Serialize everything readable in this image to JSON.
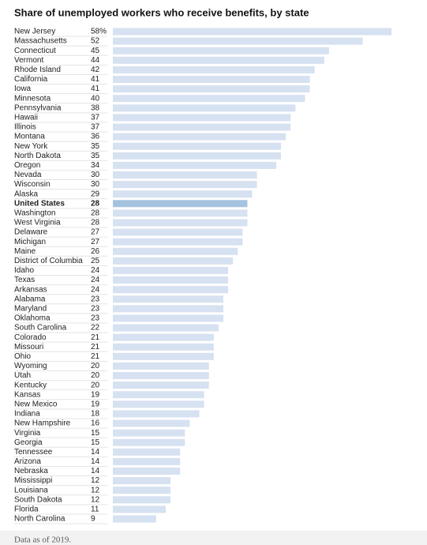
{
  "chart_data": {
    "type": "hbar",
    "title": "Share of unemployed workers who receive benefits, by state",
    "categories": [
      "New Jersey",
      "Massachusetts",
      "Connecticut",
      "Vermont",
      "Rhode Island",
      "California",
      "Iowa",
      "Minnesota",
      "Pennsylvania",
      "Hawaii",
      "Illinois",
      "Montana",
      "New York",
      "North Dakota",
      "Oregon",
      "Nevada",
      "Wisconsin",
      "Alaska",
      "United States",
      "Washington",
      "West Virginia",
      "Delaware",
      "Michigan",
      "Maine",
      "District of Columbia",
      "Idaho",
      "Texas",
      "Arkansas",
      "Alabama",
      "Maryland",
      "Oklahoma",
      "South Carolina",
      "Colorado",
      "Missouri",
      "Ohio",
      "Wyoming",
      "Utah",
      "Kentucky",
      "Kansas",
      "New Mexico",
      "Indiana",
      "New Hampshire",
      "Virginia",
      "Georgia",
      "Tennessee",
      "Arizona",
      "Nebraska",
      "Mississippi",
      "Louisiana",
      "South Dakota",
      "Florida",
      "North Carolina"
    ],
    "values": [
      58,
      52,
      45,
      44,
      42,
      41,
      41,
      40,
      38,
      37,
      37,
      36,
      35,
      35,
      34,
      30,
      30,
      29,
      28,
      28,
      28,
      27,
      27,
      26,
      25,
      24,
      24,
      24,
      23,
      23,
      23,
      22,
      21,
      21,
      21,
      20,
      20,
      20,
      19,
      19,
      18,
      16,
      15,
      15,
      14,
      14,
      14,
      12,
      12,
      12,
      11,
      9
    ],
    "value_labels": [
      "58%",
      "52",
      "45",
      "44",
      "42",
      "41",
      "41",
      "40",
      "38",
      "37",
      "37",
      "36",
      "35",
      "35",
      "34",
      "30",
      "30",
      "29",
      "28",
      "28",
      "28",
      "27",
      "27",
      "26",
      "25",
      "24",
      "24",
      "24",
      "23",
      "23",
      "23",
      "22",
      "21",
      "21",
      "21",
      "20",
      "20",
      "20",
      "19",
      "19",
      "18",
      "16",
      "15",
      "15",
      "14",
      "14",
      "14",
      "12",
      "12",
      "12",
      "11",
      "9"
    ],
    "color": "#d6e1f1",
    "highlight": "United States",
    "highlight_color": "#a5c3de",
    "note": "Data as of 2019."
  }
}
